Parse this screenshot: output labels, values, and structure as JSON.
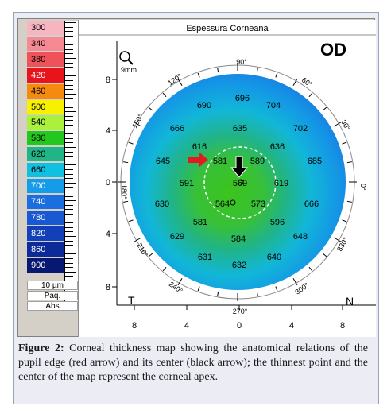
{
  "legend": {
    "items": [
      {
        "value": "300",
        "color": "#f6b5c0",
        "text": "#000000"
      },
      {
        "value": "340",
        "color": "#f58a94",
        "text": "#000000"
      },
      {
        "value": "380",
        "color": "#f0525a",
        "text": "#000000"
      },
      {
        "value": "420",
        "color": "#e8141c",
        "text": "#ffffff"
      },
      {
        "value": "460",
        "color": "#f58a10",
        "text": "#000000"
      },
      {
        "value": "500",
        "color": "#f7f000",
        "text": "#000000"
      },
      {
        "value": "540",
        "color": "#aaf03c",
        "text": "#000000"
      },
      {
        "value": "580",
        "color": "#22c81e",
        "text": "#000000"
      },
      {
        "value": "620",
        "color": "#20b487",
        "text": "#000000"
      },
      {
        "value": "660",
        "color": "#10c0e0",
        "text": "#000000"
      },
      {
        "value": "700",
        "color": "#149ce8",
        "text": "#ffffff"
      },
      {
        "value": "740",
        "color": "#1a6ee0",
        "text": "#ffffff"
      },
      {
        "value": "780",
        "color": "#1858d2",
        "text": "#ffffff"
      },
      {
        "value": "820",
        "color": "#1240b8",
        "text": "#ffffff"
      },
      {
        "value": "860",
        "color": "#0c2a98",
        "text": "#ffffff"
      },
      {
        "value": "900",
        "color": "#061870",
        "text": "#ffffff"
      }
    ],
    "step": "10 µm",
    "paq": "Paq.",
    "abs": "Abs"
  },
  "map": {
    "title": "Espessura Corneana",
    "eye": "OD",
    "zoom": "9mm",
    "top_deg": "90°",
    "bottom_deg": "270°",
    "left_deg": "180°",
    "right_deg": "0°",
    "deg_labels": [
      "120°",
      "60°",
      "150°",
      "30°",
      "210°",
      "330°",
      "240°",
      "300°"
    ],
    "y_ticks": [
      "8",
      "4",
      "0",
      "4",
      "8"
    ],
    "x_ticks": [
      "8",
      "4",
      "0",
      "4",
      "8"
    ],
    "t_label": "T",
    "n_label": "N",
    "values": [
      "696",
      "690",
      "704",
      "666",
      "635",
      "702",
      "616",
      "636",
      "645",
      "581",
      "589",
      "685",
      "591",
      "569",
      "619",
      "630",
      "564",
      "573",
      "666",
      "581",
      "596",
      "629",
      "584",
      "648",
      "631",
      "640",
      "632"
    ]
  },
  "caption": {
    "label": "Figure 2:",
    "text": " Corneal thickness map showing the anatomical relations of the pupil edge (red arrow) and its center (black arrow); the thinnest point and the center of the map represent the corneal apex."
  }
}
